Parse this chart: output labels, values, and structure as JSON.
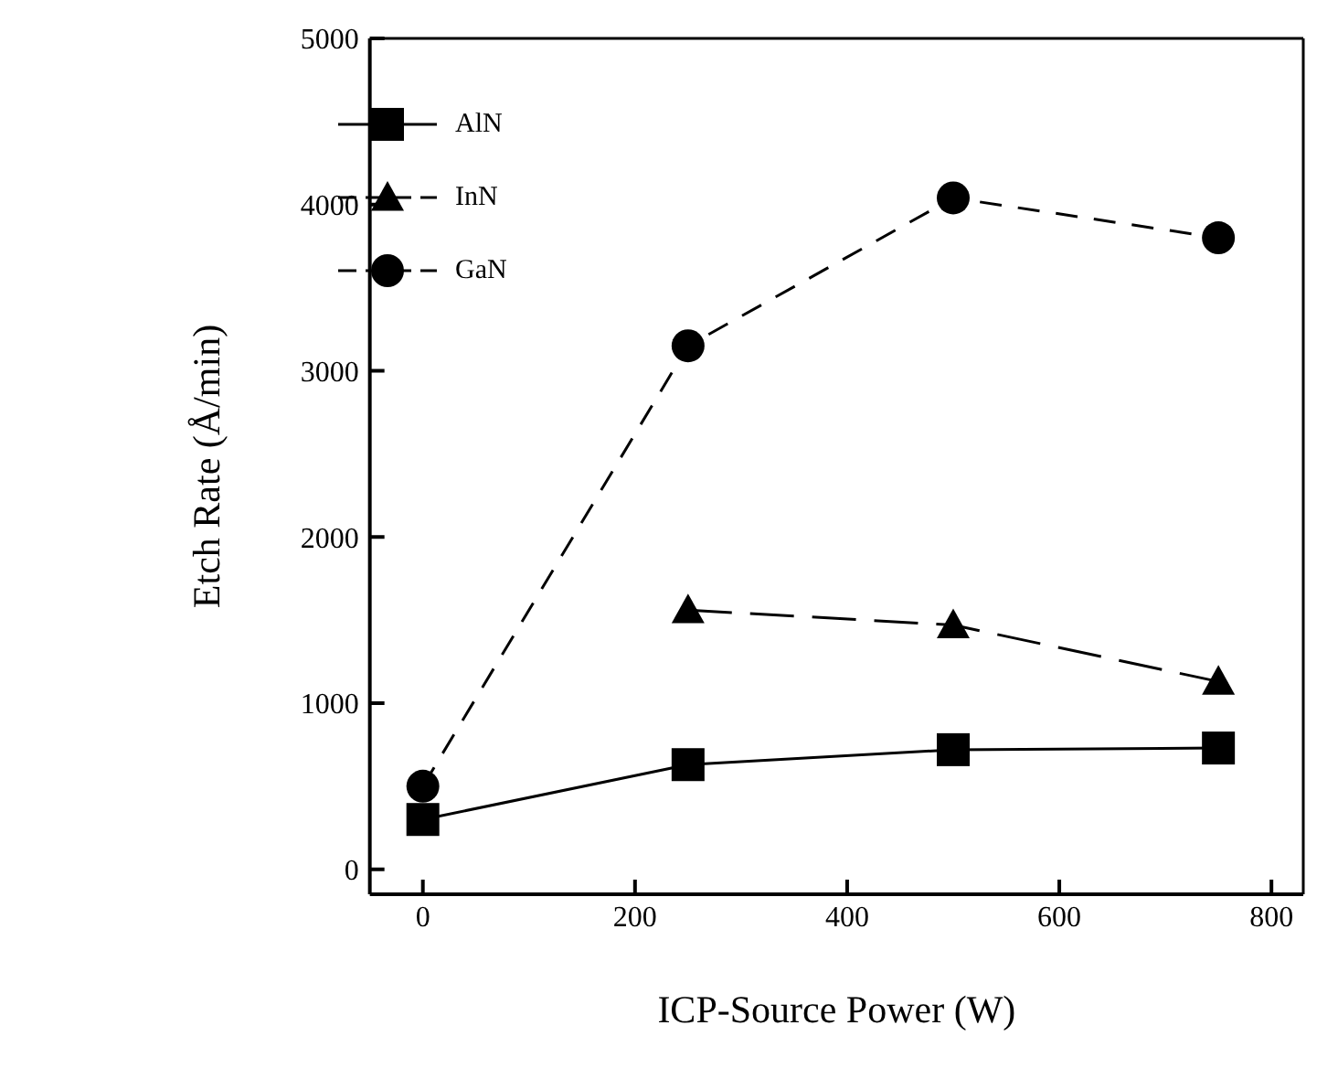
{
  "chart_data": {
    "type": "line",
    "xlabel": "ICP-Source Power (W)",
    "ylabel": "Etch Rate (Å/min)",
    "x": [
      0,
      250,
      500,
      750
    ],
    "series": [
      {
        "name": "AlN",
        "color": "#000000",
        "values": [
          300,
          630,
          720,
          730
        ],
        "marker": "square",
        "line_style": "solid"
      },
      {
        "name": "InN",
        "color": "#000000",
        "values": [
          null,
          1560,
          1470,
          1130
        ],
        "marker": "triangle",
        "line_style": "dashed"
      },
      {
        "name": "GaN",
        "color": "#000000",
        "values": [
          500,
          3150,
          4040,
          3800
        ],
        "marker": "circle",
        "line_style": "dashed"
      }
    ],
    "xlim": [
      -50,
      830
    ],
    "xticks": [
      0,
      200,
      400,
      600,
      800
    ],
    "ylim": [
      -150,
      5000
    ],
    "yticks": [
      0,
      1000,
      2000,
      3000,
      4000,
      5000
    ],
    "legend": "top left"
  }
}
